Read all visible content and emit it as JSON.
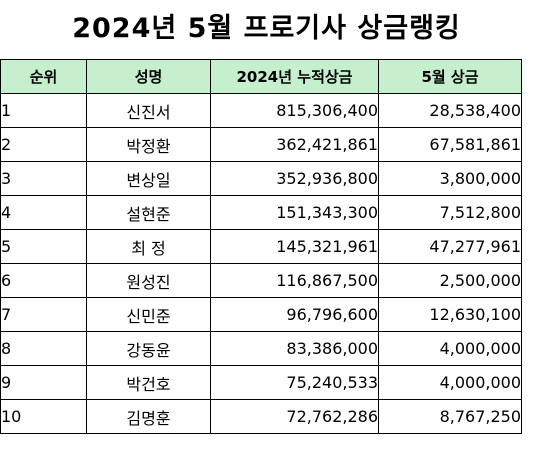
{
  "title": "2024년 5월 프로기사 상금랭킹",
  "table": {
    "headers": [
      "순위",
      "성명",
      "2024년 누적상금",
      "5월 상금"
    ],
    "rows": [
      {
        "rank": "1",
        "name": "신진서",
        "cumulative": "815,306,400",
        "may": "28,538,400"
      },
      {
        "rank": "2",
        "name": "박정환",
        "cumulative": "362,421,861",
        "may": "67,581,861"
      },
      {
        "rank": "3",
        "name": "변상일",
        "cumulative": "352,936,800",
        "may": "3,800,000"
      },
      {
        "rank": "4",
        "name": "설현준",
        "cumulative": "151,343,300",
        "may": "7,512,800"
      },
      {
        "rank": "5",
        "name": "최 정",
        "cumulative": "145,321,961",
        "may": "47,277,961"
      },
      {
        "rank": "6",
        "name": "원성진",
        "cumulative": "116,867,500",
        "may": "2,500,000"
      },
      {
        "rank": "7",
        "name": "신민준",
        "cumulative": "96,796,600",
        "may": "12,630,100"
      },
      {
        "rank": "8",
        "name": "강동윤",
        "cumulative": "83,386,000",
        "may": "4,000,000"
      },
      {
        "rank": "9",
        "name": "박건호",
        "cumulative": "75,240,533",
        "may": "4,000,000"
      },
      {
        "rank": "10",
        "name": "김명훈",
        "cumulative": "72,762,286",
        "may": "8,767,250"
      }
    ]
  },
  "colors": {
    "header_bg": "#c6efce",
    "border": "#000000",
    "text": "#000000"
  }
}
